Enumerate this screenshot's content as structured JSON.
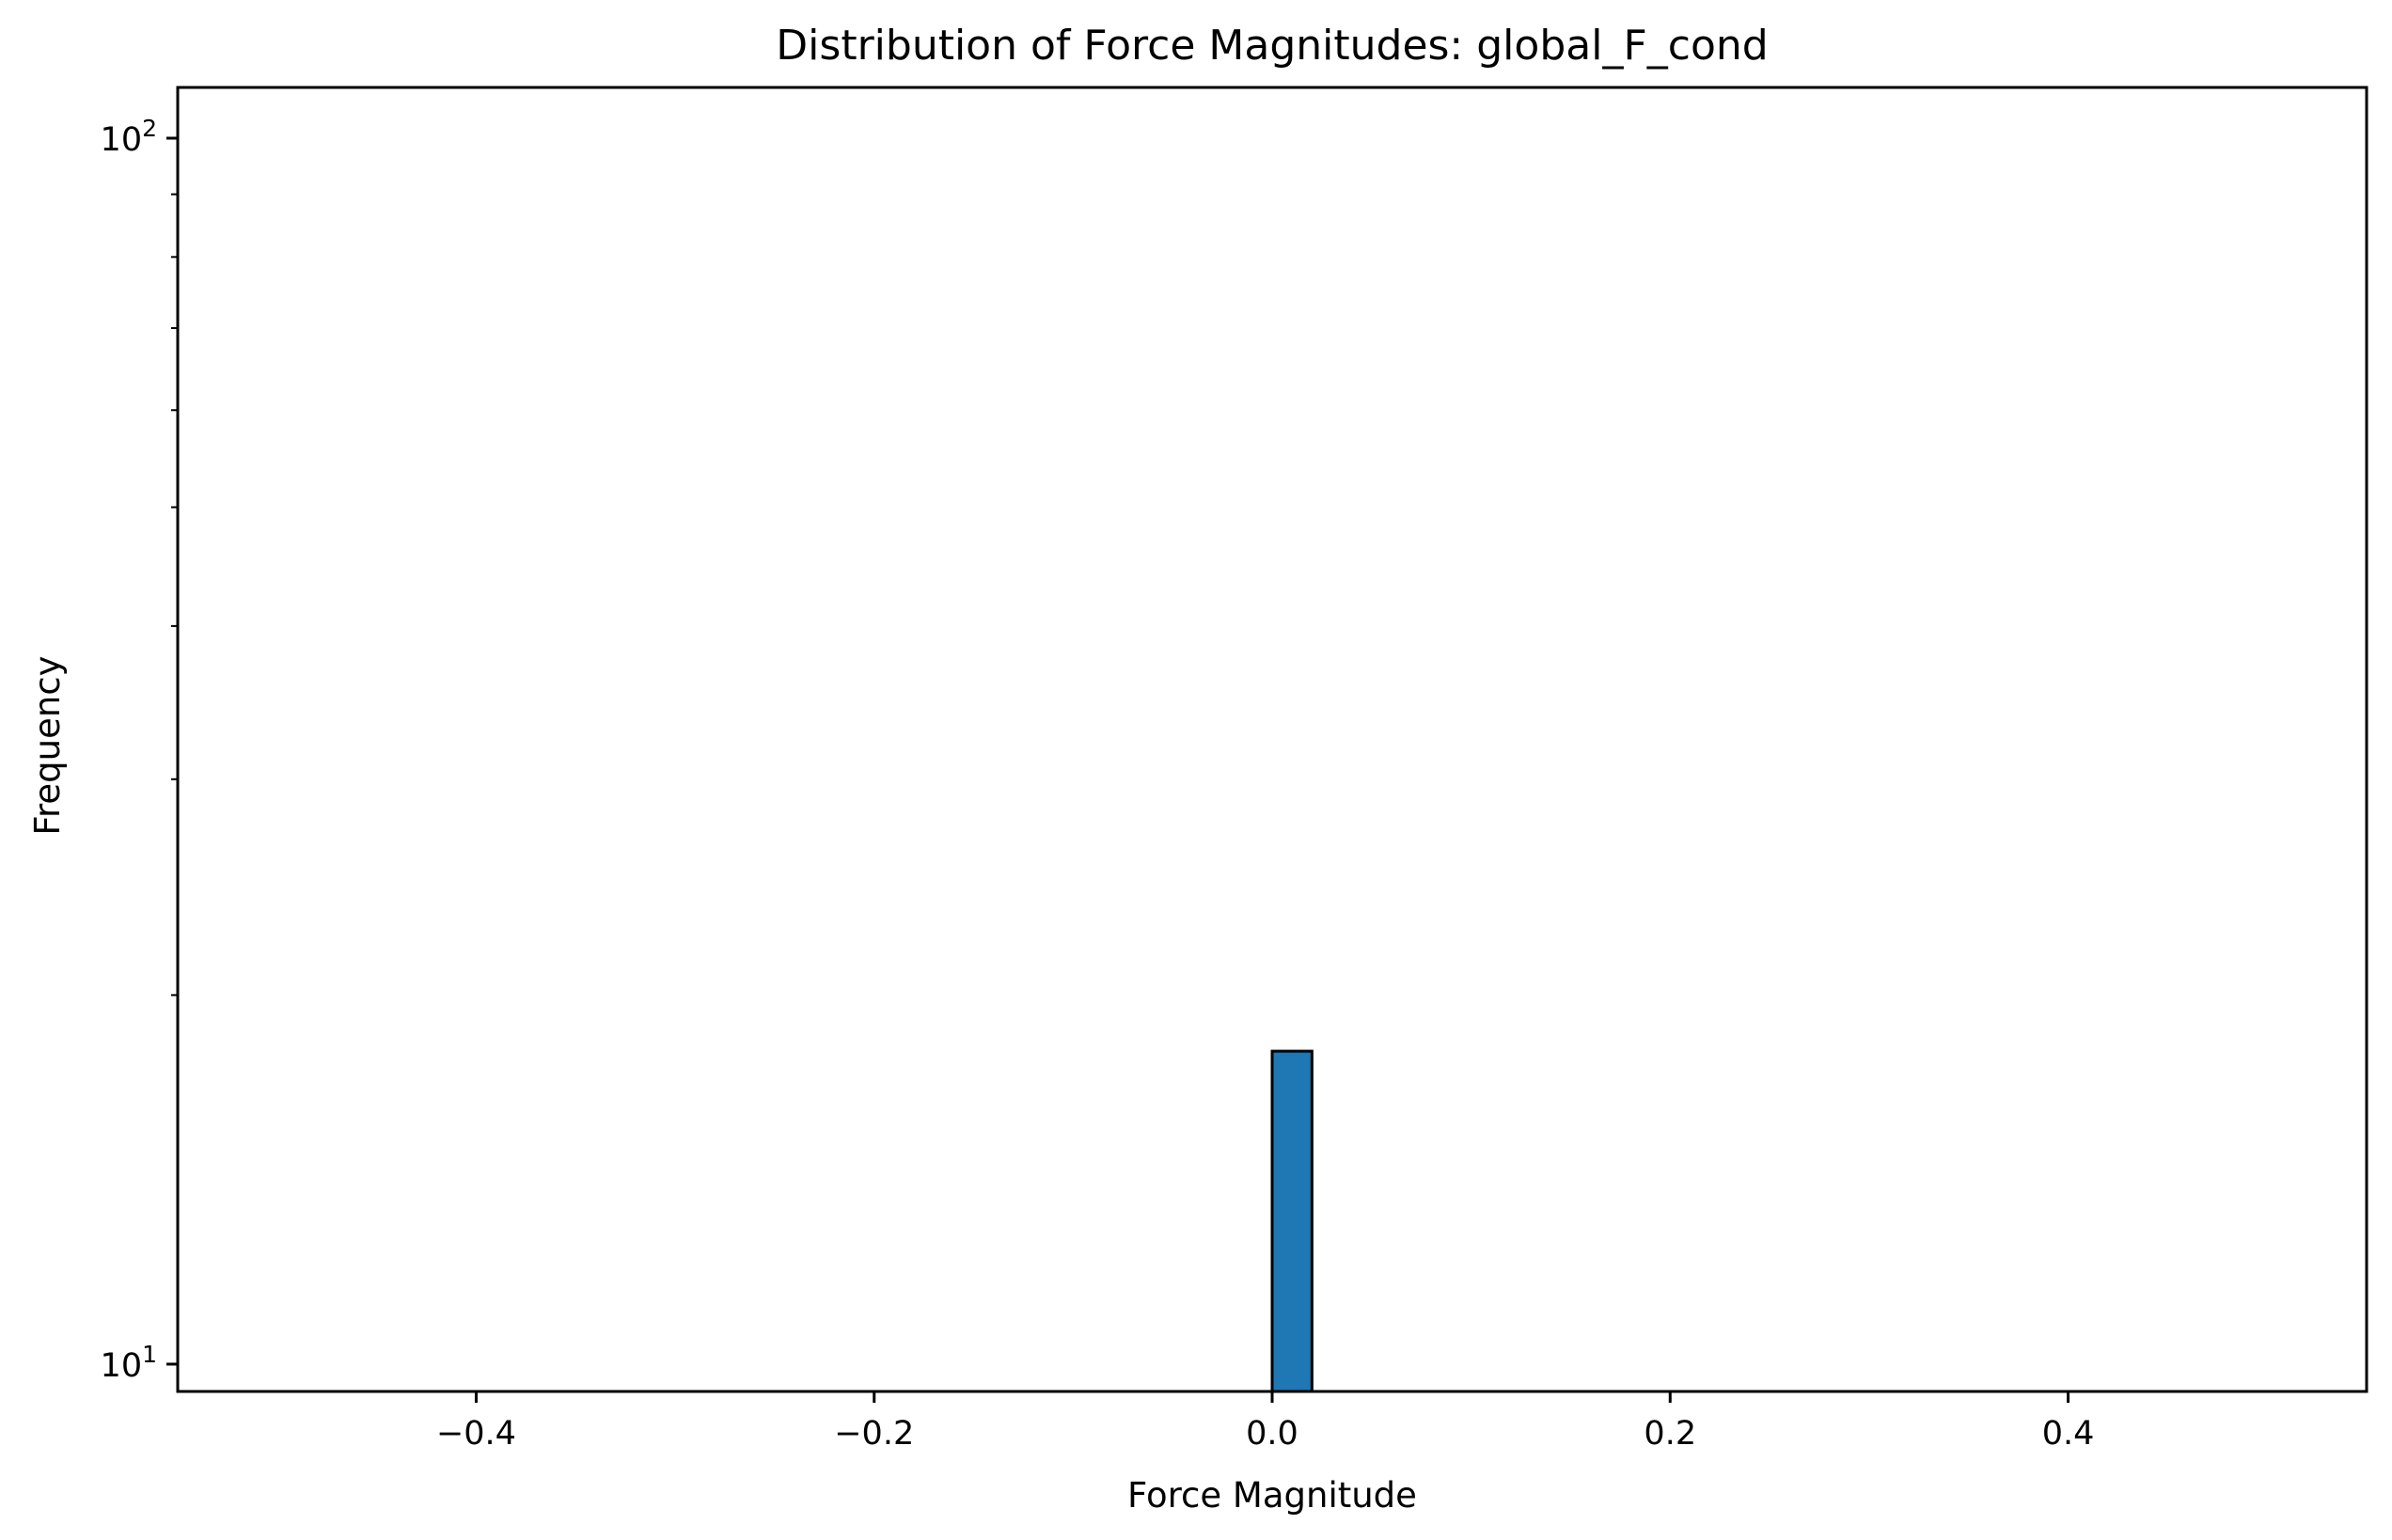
{
  "chart_data": {
    "type": "bar",
    "title": "Distribution of Force Magnitudes: global_F_cond",
    "xlabel": "Force Magnitude",
    "ylabel": "Frequency",
    "y_scale": "log",
    "xlim": [
      -0.55,
      0.55
    ],
    "ylim": [
      9.5,
      110
    ],
    "x_ticks": [
      {
        "value": -0.4,
        "label": "−0.4"
      },
      {
        "value": -0.2,
        "label": "−0.2"
      },
      {
        "value": 0.0,
        "label": "0.0"
      },
      {
        "value": 0.2,
        "label": "0.2"
      },
      {
        "value": 0.4,
        "label": "0.4"
      }
    ],
    "y_ticks": [
      {
        "value": 10,
        "base": "10",
        "exponent": "1"
      },
      {
        "value": 100,
        "base": "10",
        "exponent": "2"
      }
    ],
    "bins": [
      {
        "x_start": 0.0,
        "x_end": 0.02,
        "count": 18
      }
    ],
    "grid": false,
    "legend": "none",
    "colors": {
      "bar_fill": "#1f77b4",
      "bar_edge": "#000000",
      "axes": "#000000",
      "background": "#ffffff"
    }
  }
}
